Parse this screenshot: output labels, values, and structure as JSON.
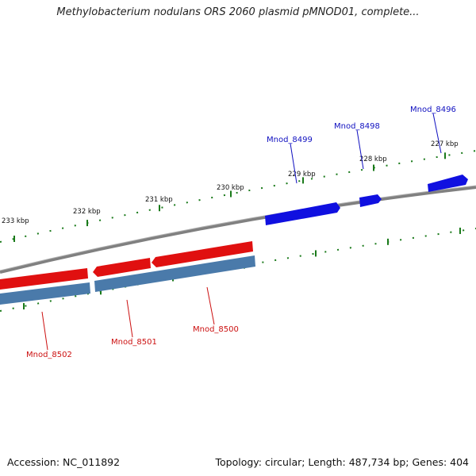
{
  "header": {
    "title": "Methylobacterium nodulans ORS 2060 plasmid pMNOD01, complete..."
  },
  "footer": {
    "accession": "Accession: NC_011892",
    "summary": "Topology: circular; Length: 487,734 bp; Genes: 404"
  },
  "colors": {
    "backbone": "#7a7a7a",
    "tick": "#1a7a1a",
    "forward_gene": "#1010e0",
    "reverse_gene": "#e01010",
    "cds": "#4a7aaa",
    "forward_label": "#1010c0",
    "reverse_label": "#cc1010"
  },
  "scale_labels": [
    "227 kbp",
    "228 kbp",
    "229 kbp",
    "230 kbp",
    "231 kbp",
    "232 kbp",
    "233 kbp"
  ],
  "genes": [
    {
      "id": "Mnod_8496",
      "strand": "forward"
    },
    {
      "id": "Mnod_8498",
      "strand": "forward"
    },
    {
      "id": "Mnod_8499",
      "strand": "forward"
    },
    {
      "id": "Mnod_8500",
      "strand": "reverse"
    },
    {
      "id": "Mnod_8501",
      "strand": "reverse"
    },
    {
      "id": "Mnod_8502",
      "strand": "reverse"
    }
  ]
}
